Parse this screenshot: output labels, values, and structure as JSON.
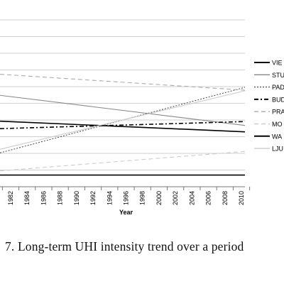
{
  "chart_data": {
    "type": "line",
    "title": "",
    "xlabel": "Year",
    "ylabel": "",
    "x": [
      1982,
      2010
    ],
    "x_ticks": [
      "1982",
      "1984",
      "1986",
      "1988",
      "1990",
      "1992",
      "1994",
      "1996",
      "1998",
      "2000",
      "2002",
      "2004",
      "2006",
      "2008",
      "2010"
    ],
    "ylim": [
      0,
      10
    ],
    "grid": true,
    "legend": "right",
    "series": [
      {
        "name": "VIE",
        "style": "solid",
        "color": "#000000",
        "values": [
          3.9,
          3.3
        ]
      },
      {
        "name": "STU",
        "style": "solid",
        "color": "#888888",
        "values": [
          5.4,
          3.7
        ]
      },
      {
        "name": "PAD",
        "style": "dotted",
        "color": "#555555",
        "values": [
          2.2,
          5.9
        ]
      },
      {
        "name": "BUD",
        "style": "dashdot",
        "color": "#000000",
        "values": [
          3.5,
          3.9
        ]
      },
      {
        "name": "PRA",
        "style": "dashed",
        "color": "#aaaaaa",
        "values": [
          6.7,
          5.8
        ]
      },
      {
        "name": "MO",
        "style": "dashed",
        "color": "#cccccc",
        "values": [
          1.0,
          2.1
        ]
      },
      {
        "name": "WA",
        "style": "solid",
        "color": "#000000",
        "values": [
          0.7,
          0.7
        ]
      },
      {
        "name": "LJU",
        "style": "solid",
        "color": "#cccccc",
        "values": [
          2.4,
          5.7
        ]
      }
    ]
  },
  "caption": "7. Long-term UHI intensity trend over a period"
}
